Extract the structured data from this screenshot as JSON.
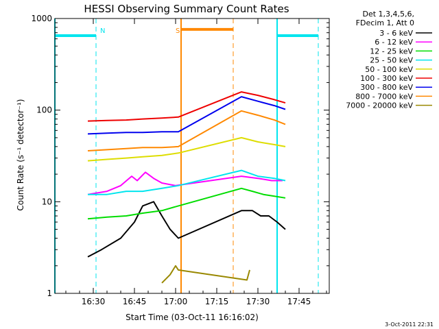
{
  "chart_data": {
    "type": "line",
    "title": "HESSI Observing Summary Count Rates",
    "xlabel": "Start Time (03-Oct-11 16:16:02)",
    "ylabel": "Count Rate (s⁻¹ detector⁻¹)",
    "y_scale": "log",
    "ylim": [
      1,
      1000
    ],
    "xlim": [
      "16:16",
      "17:56"
    ],
    "x_ticks": [
      "16:30",
      "16:45",
      "17:00",
      "17:15",
      "17:30",
      "17:45"
    ],
    "y_ticks": [
      "1",
      "10",
      "100",
      "1000"
    ],
    "legend_header": [
      "Det 1,3,4,5,6,",
      "FDecim 1, Att 0"
    ],
    "legend_position": "right",
    "series": [
      {
        "name": "3 - 6 keV",
        "color": "#000000",
        "x": [
          "16:28",
          "16:33",
          "16:40",
          "16:45",
          "16:48",
          "16:52",
          "16:55",
          "16:58",
          "17:01",
          "17:24",
          "17:28",
          "17:31",
          "17:34",
          "17:37",
          "17:40"
        ],
        "values": [
          2.5,
          3,
          4,
          6,
          9,
          10,
          7,
          5,
          4,
          8,
          8,
          7,
          7,
          6,
          5
        ]
      },
      {
        "name": "6 - 12 keV",
        "color": "#ff00ff",
        "x": [
          "16:28",
          "16:35",
          "16:40",
          "16:44",
          "16:46",
          "16:49",
          "16:52",
          "16:55",
          "17:00",
          "17:24",
          "17:30",
          "17:35",
          "17:39"
        ],
        "values": [
          12,
          13,
          15,
          19,
          17,
          21,
          18,
          16,
          15,
          19,
          18,
          17,
          17
        ]
      },
      {
        "name": "12 - 25 keV",
        "color": "#00dd00",
        "x": [
          "16:28",
          "16:35",
          "16:42",
          "16:48",
          "16:55",
          "17:01",
          "17:24",
          "17:28",
          "17:32",
          "17:36",
          "17:40"
        ],
        "values": [
          6.5,
          6.8,
          7,
          7.5,
          8,
          9,
          14,
          13,
          12,
          11.5,
          11
        ]
      },
      {
        "name": "25 - 50 keV",
        "color": "#00e5ee",
        "x": [
          "16:28",
          "16:35",
          "16:42",
          "16:48",
          "16:55",
          "17:01",
          "17:24",
          "17:30",
          "17:36",
          "17:40"
        ],
        "values": [
          12,
          12,
          13,
          13,
          14,
          15,
          22,
          19,
          18,
          17
        ]
      },
      {
        "name": "50 - 100 keV",
        "color": "#dddd00",
        "x": [
          "16:28",
          "16:35",
          "16:42",
          "16:48",
          "16:55",
          "17:01",
          "17:24",
          "17:30",
          "17:36",
          "17:40"
        ],
        "values": [
          28,
          29,
          30,
          31,
          32,
          34,
          50,
          45,
          42,
          40
        ]
      },
      {
        "name": "100 - 300 keV",
        "color": "#ee0000",
        "x": [
          "16:28",
          "16:35",
          "16:42",
          "16:48",
          "16:55",
          "17:01",
          "17:24",
          "17:30",
          "17:36",
          "17:40"
        ],
        "values": [
          76,
          77,
          78,
          80,
          82,
          84,
          158,
          145,
          130,
          120
        ]
      },
      {
        "name": "300 - 800 keV",
        "color": "#0000ee",
        "x": [
          "16:28",
          "16:35",
          "16:42",
          "16:48",
          "16:55",
          "17:01",
          "17:24",
          "17:30",
          "17:36",
          "17:40"
        ],
        "values": [
          55,
          56,
          57,
          57,
          58,
          58,
          140,
          125,
          112,
          102
        ]
      },
      {
        "name": "800 - 7000 keV",
        "color": "#ff8800",
        "x": [
          "16:28",
          "16:35",
          "16:42",
          "16:48",
          "16:55",
          "17:01",
          "17:24",
          "17:30",
          "17:36",
          "17:40"
        ],
        "values": [
          36,
          37,
          38,
          39,
          39,
          40,
          98,
          88,
          78,
          70
        ]
      },
      {
        "name": "7000 - 20000 keV",
        "color": "#998800",
        "x": [
          "16:55",
          "16:58",
          "17:00",
          "17:01",
          "17:26",
          "17:27"
        ],
        "values": [
          1.3,
          1.6,
          2,
          1.8,
          1.4,
          1.8
        ]
      }
    ],
    "night_bars": [
      {
        "x_start": "16:16",
        "x_end": "16:31",
        "level": 650,
        "color": "#00e5ee"
      },
      {
        "x_start": "17:02",
        "x_end": "17:21",
        "level": 760,
        "color": "#ff8800"
      },
      {
        "x_start": "17:37",
        "x_end": "17:52",
        "level": 650,
        "color": "#00e5ee"
      }
    ],
    "markers": [
      {
        "label": "N",
        "x": "16:31",
        "color": "#00e5ee"
      },
      {
        "label": "S",
        "x": "17:02",
        "color": "#ff8800"
      },
      {
        "label": "",
        "x": "17:21",
        "color": "#ff8800"
      },
      {
        "label": "",
        "x": "17:52",
        "color": "#00e5ee"
      }
    ],
    "footer_stamp": "3-Oct-2011 22:31",
    "grid": false
  }
}
